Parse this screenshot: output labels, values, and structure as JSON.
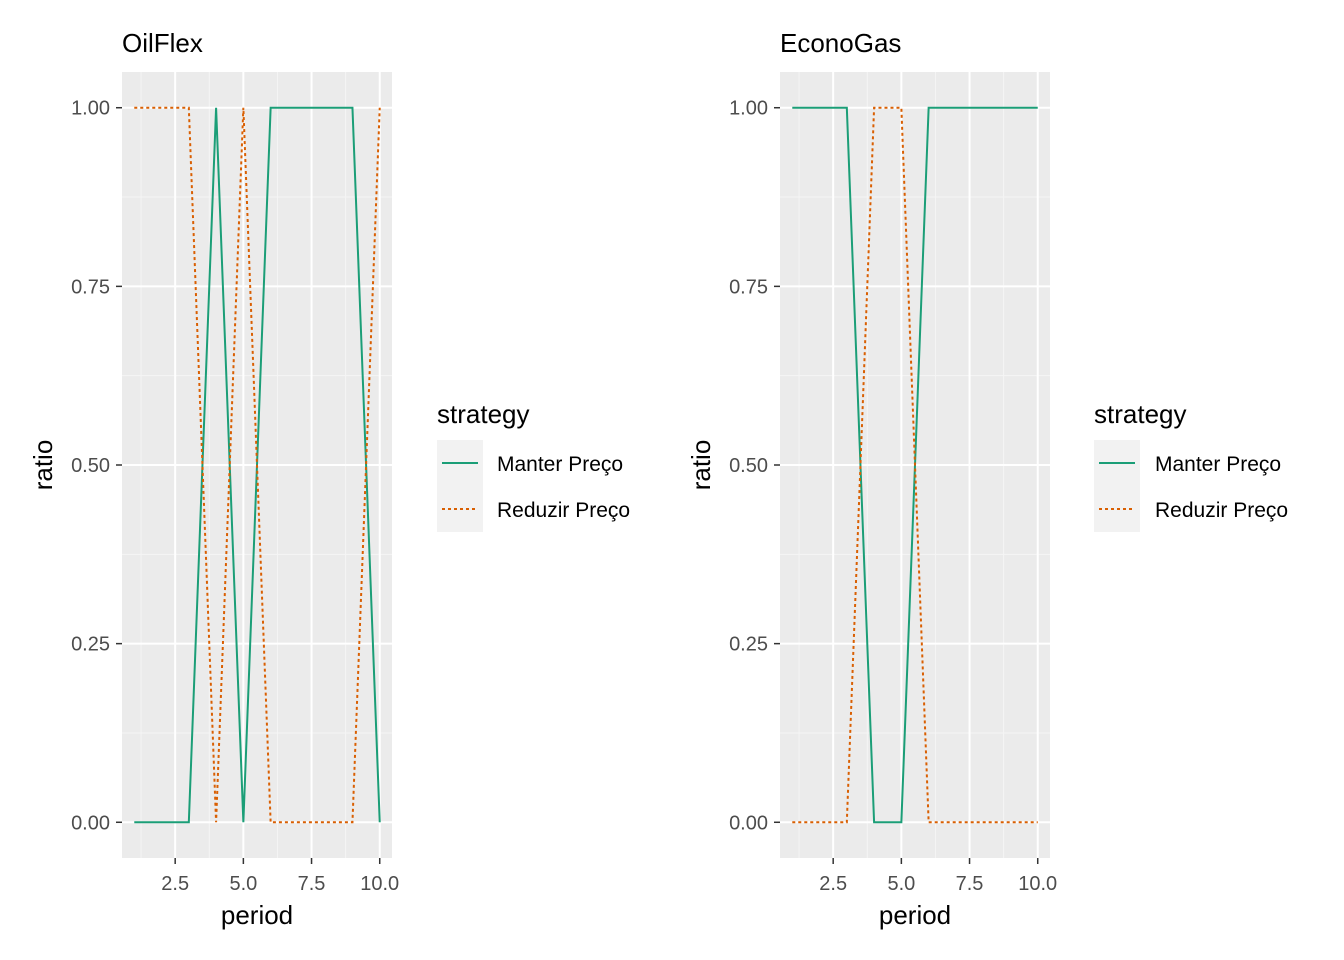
{
  "colors": {
    "panel_bg": "#ebebeb",
    "grid_major": "#ffffff",
    "grid_minor": "#f5f5f5",
    "tick": "#333333",
    "legend_key_bg": "#f2f2f2",
    "manter": "#1b9e77",
    "reduzir": "#d95f02"
  },
  "chart_data": [
    {
      "type": "line",
      "title": "OilFlex",
      "xlabel": "period",
      "ylabel": "ratio",
      "xlim": [
        0.55,
        10.45
      ],
      "ylim": [
        -0.05,
        1.05
      ],
      "x_ticks": [
        2.5,
        5.0,
        7.5,
        10.0
      ],
      "x_tick_labels": [
        "2.5",
        "5.0",
        "7.5",
        "10.0"
      ],
      "y_ticks": [
        0,
        0.25,
        0.5,
        0.75,
        1.0
      ],
      "y_tick_labels": [
        "0.00",
        "0.25",
        "0.50",
        "0.75",
        "1.00"
      ],
      "grid": true,
      "legend": {
        "title": "strategy",
        "placement": "right",
        "entries": [
          "Manter Preço",
          "Reduzir Preço"
        ]
      },
      "x": [
        1,
        2,
        3,
        4,
        5,
        6,
        7,
        8,
        9,
        10
      ],
      "series": [
        {
          "name": "Manter Preço",
          "line": "solid",
          "values": [
            0,
            0,
            0,
            1,
            0,
            1,
            1,
            1,
            1,
            0
          ]
        },
        {
          "name": "Reduzir Preço",
          "line": "dotted",
          "values": [
            1,
            1,
            1,
            0,
            1,
            0,
            0,
            0,
            0,
            1
          ]
        }
      ]
    },
    {
      "type": "line",
      "title": "EconoGas",
      "xlabel": "period",
      "ylabel": "ratio",
      "xlim": [
        0.55,
        10.45
      ],
      "ylim": [
        -0.05,
        1.05
      ],
      "x_ticks": [
        2.5,
        5.0,
        7.5,
        10.0
      ],
      "x_tick_labels": [
        "2.5",
        "5.0",
        "7.5",
        "10.0"
      ],
      "y_ticks": [
        0,
        0.25,
        0.5,
        0.75,
        1.0
      ],
      "y_tick_labels": [
        "0.00",
        "0.25",
        "0.50",
        "0.75",
        "1.00"
      ],
      "grid": true,
      "legend": {
        "title": "strategy",
        "placement": "right",
        "entries": [
          "Manter Preço",
          "Reduzir Preço"
        ]
      },
      "x": [
        1,
        2,
        3,
        4,
        5,
        6,
        7,
        8,
        9,
        10
      ],
      "series": [
        {
          "name": "Manter Preço",
          "line": "solid",
          "values": [
            1,
            1,
            1,
            0,
            0,
            1,
            1,
            1,
            1,
            1
          ]
        },
        {
          "name": "Reduzir Preço",
          "line": "dotted",
          "values": [
            0,
            0,
            0,
            1,
            1,
            0,
            0,
            0,
            0,
            0
          ]
        }
      ]
    }
  ]
}
